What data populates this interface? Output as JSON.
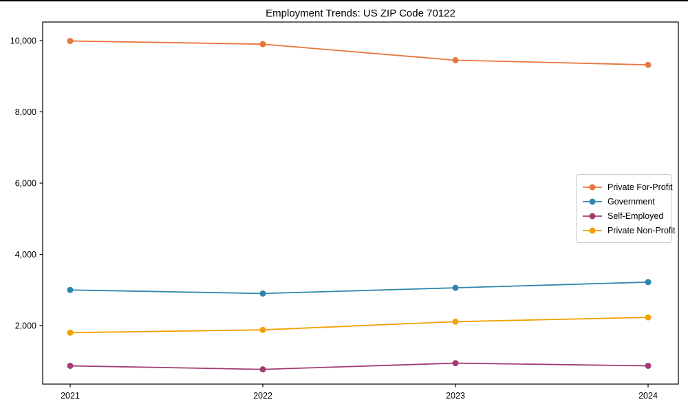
{
  "figure": {
    "title": "Employment Trends: US ZIP Code 70122"
  },
  "chart_data": {
    "type": "line",
    "title": "Employment Trends: US ZIP Code 70122",
    "categories": [
      "2021",
      "2022",
      "2023",
      "2024"
    ],
    "series": [
      {
        "name": "Private For-Profit",
        "color": "#E8763F",
        "values": [
          9990,
          9900,
          9450,
          9320
        ]
      },
      {
        "name": "Government",
        "color": "#2E86AB",
        "values": [
          3000,
          2900,
          3060,
          3220
        ]
      },
      {
        "name": "Self-Employed",
        "color": "#A23B72",
        "values": [
          870,
          770,
          945,
          870
        ]
      },
      {
        "name": "Private Non-Profit",
        "color": "#F2A104",
        "values": [
          1800,
          1880,
          2110,
          2230
        ]
      }
    ],
    "xlabel": "",
    "ylabel": "",
    "ylim": [
      357,
      10522
    ],
    "yticks": [
      2000,
      4000,
      6000,
      8000,
      10000
    ],
    "ytick_labels": [
      "2,000",
      "4,000",
      "6,000",
      "8,000",
      "10,000"
    ],
    "grid": false,
    "legend_position": "center right",
    "marker": "circle",
    "line_width": 1.8,
    "marker_radius": 4.5,
    "axis_color": "#000000"
  }
}
